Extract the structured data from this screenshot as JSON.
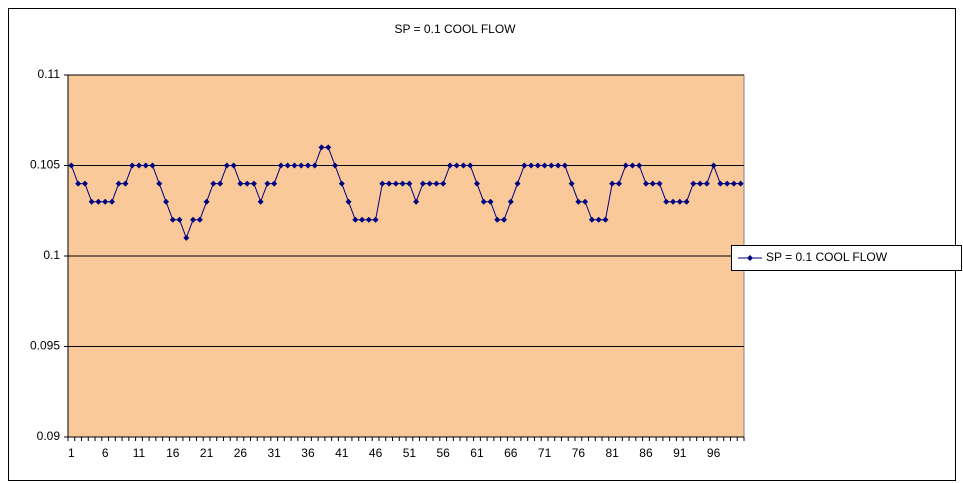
{
  "chart_data": {
    "type": "line",
    "title": "SP = 0.1 COOL FLOW",
    "categories": [
      1,
      null,
      null,
      null,
      null,
      6,
      null,
      null,
      null,
      null,
      11,
      null,
      null,
      null,
      null,
      16,
      null,
      null,
      null,
      null,
      21,
      null,
      null,
      null,
      null,
      26,
      null,
      null,
      null,
      null,
      31,
      null,
      null,
      null,
      null,
      36,
      null,
      null,
      null,
      null,
      41,
      null,
      null,
      null,
      null,
      46,
      null,
      null,
      null,
      null,
      51,
      null,
      null,
      null,
      null,
      56,
      null,
      null,
      null,
      null,
      61,
      null,
      null,
      null,
      null,
      66,
      null,
      null,
      null,
      null,
      71,
      null,
      null,
      null,
      null,
      76,
      null,
      null,
      null,
      null,
      81,
      null,
      null,
      null,
      null,
      86,
      null,
      null,
      null,
      null,
      91,
      null,
      null,
      null,
      null,
      96,
      null,
      null,
      null,
      null
    ],
    "series": [
      {
        "name": "SP = 0.1 COOL FLOW",
        "color": "#000080",
        "values": [
          0.105,
          0.104,
          0.104,
          0.103,
          0.103,
          0.103,
          0.103,
          0.104,
          0.104,
          0.105,
          0.105,
          0.105,
          0.105,
          0.104,
          0.103,
          0.102,
          0.102,
          0.101,
          0.102,
          0.102,
          0.103,
          0.104,
          0.104,
          0.105,
          0.105,
          0.104,
          0.104,
          0.104,
          0.103,
          0.104,
          0.104,
          0.105,
          0.105,
          0.105,
          0.105,
          0.105,
          0.105,
          0.106,
          0.106,
          0.105,
          0.104,
          0.103,
          0.102,
          0.102,
          0.102,
          0.102,
          0.104,
          0.104,
          0.104,
          0.104,
          0.104,
          0.103,
          0.104,
          0.104,
          0.104,
          0.104,
          0.105,
          0.105,
          0.105,
          0.105,
          0.104,
          0.103,
          0.103,
          0.102,
          0.102,
          0.103,
          0.104,
          0.105,
          0.105,
          0.105,
          0.105,
          0.105,
          0.105,
          0.105,
          0.104,
          0.103,
          0.103,
          0.102,
          0.102,
          0.102,
          0.104,
          0.104,
          0.105,
          0.105,
          0.105,
          0.104,
          0.104,
          0.104,
          0.103,
          0.103,
          0.103,
          0.103,
          0.104,
          0.104,
          0.104,
          0.105,
          0.104,
          0.104,
          0.104,
          0.104
        ]
      }
    ],
    "ylim": [
      0.09,
      0.11
    ],
    "yticks": [
      0.09,
      0.095,
      0.1,
      0.105,
      0.11
    ],
    "grid": true,
    "plot_background": "#F9C99A",
    "legend": "right"
  }
}
